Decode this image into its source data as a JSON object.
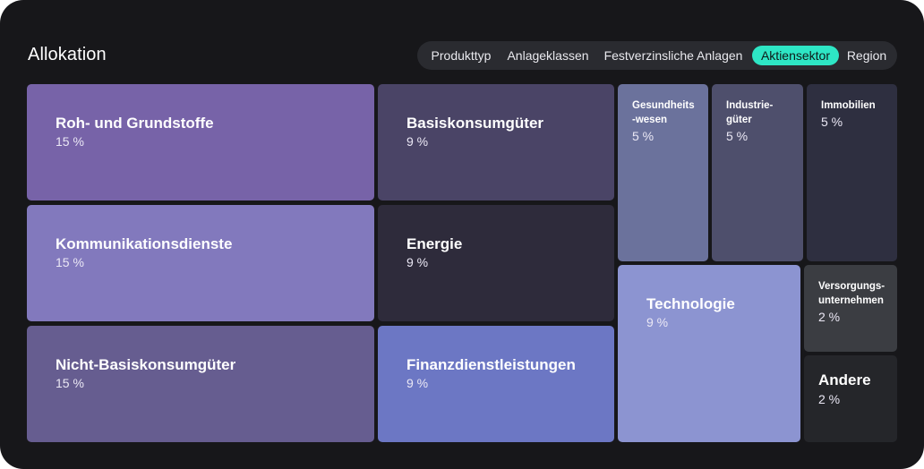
{
  "title": "Allokation",
  "tabs": [
    {
      "label": "Produkttyp",
      "active": false
    },
    {
      "label": "Anlageklassen",
      "active": false
    },
    {
      "label": "Festverzinsliche Anlagen",
      "active": false
    },
    {
      "label": "Aktiensektor",
      "active": true
    },
    {
      "label": "Region",
      "active": false
    }
  ],
  "colors": {
    "background": "#17171a",
    "tab_active": "#2ee6c5"
  },
  "chart_data": {
    "type": "treemap",
    "unit": "%",
    "items": [
      {
        "label": "Roh- und Grundstoffe",
        "value": 15,
        "display": "15 %",
        "color": "#7763a8"
      },
      {
        "label": "Kommunikationsdienste",
        "value": 15,
        "display": "15 %",
        "color": "#8279bd"
      },
      {
        "label": "Nicht-Basiskonsumgüter",
        "value": 15,
        "display": "15 %",
        "color": "#665d90"
      },
      {
        "label": "Basiskonsumgüter",
        "value": 9,
        "display": "9 %",
        "color": "#4a4466"
      },
      {
        "label": "Energie",
        "value": 9,
        "display": "9 %",
        "color": "#2e2b3b"
      },
      {
        "label": "Finanzdienstleistungen",
        "value": 9,
        "display": "9 %",
        "color": "#6c77c4"
      },
      {
        "label": "Gesundheits\n-wesen",
        "value": 5,
        "display": "5 %",
        "color": "#6b729c"
      },
      {
        "label": "Industrie-\ngüter",
        "value": 5,
        "display": "5 %",
        "color": "#4e4f6c"
      },
      {
        "label": "Immobilien",
        "value": 5,
        "display": "5 %",
        "color": "#2e2f40"
      },
      {
        "label": "Technologie",
        "value": 9,
        "display": "9 %",
        "color": "#8c94d1"
      },
      {
        "label": "Versorgungs-\nunternehmen",
        "value": 2,
        "display": "2 %",
        "color": "#3b3d42"
      },
      {
        "label": "Andere",
        "value": 2,
        "display": "2 %",
        "color": "#25262a"
      }
    ]
  }
}
